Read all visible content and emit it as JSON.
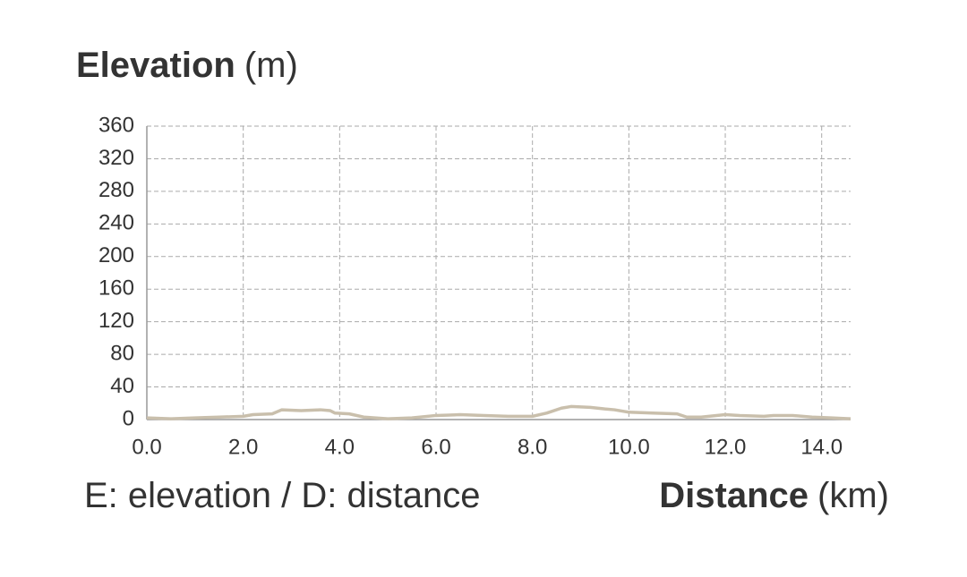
{
  "chart_data": {
    "type": "line",
    "y_label": "Elevation",
    "y_unit": "(m)",
    "x_label": "Distance",
    "x_unit": "(km)",
    "note": "E: elevation / D: distance",
    "x": [
      0,
      0.5,
      1.0,
      1.5,
      2.0,
      2.2,
      2.6,
      2.8,
      3.2,
      3.6,
      3.8,
      3.9,
      4.2,
      4.5,
      5.0,
      5.5,
      6.0,
      6.5,
      7.0,
      7.5,
      8.0,
      8.3,
      8.6,
      8.8,
      9.2,
      9.5,
      9.7,
      10.0,
      10.5,
      11.0,
      11.2,
      11.5,
      12.0,
      12.3,
      12.8,
      13.0,
      13.4,
      13.8,
      14.2,
      14.6
    ],
    "series": [
      {
        "name": "Elevation",
        "color": "#c9bfac",
        "values": [
          2,
          1,
          2,
          3,
          4,
          6,
          7,
          12,
          11,
          12,
          11,
          8,
          7,
          3,
          1,
          2,
          5,
          6,
          5,
          4,
          4,
          8,
          14,
          16,
          15,
          13,
          12,
          9,
          8,
          7,
          3,
          3,
          6,
          5,
          4,
          5,
          5,
          3,
          2,
          1
        ]
      }
    ],
    "xlim": [
      0,
      14.6
    ],
    "xticks": [
      {
        "value": 0,
        "label": "0.0"
      },
      {
        "value": 2,
        "label": "2.0"
      },
      {
        "value": 4,
        "label": "4.0"
      },
      {
        "value": 6,
        "label": "6.0"
      },
      {
        "value": 8,
        "label": "8.0"
      },
      {
        "value": 10,
        "label": "10.0"
      },
      {
        "value": 12,
        "label": "12.0"
      },
      {
        "value": 14,
        "label": "14.0"
      }
    ],
    "ylim": [
      0,
      360
    ],
    "yticks": [
      0,
      40,
      80,
      120,
      160,
      200,
      240,
      280,
      320,
      360
    ],
    "grid": true
  }
}
